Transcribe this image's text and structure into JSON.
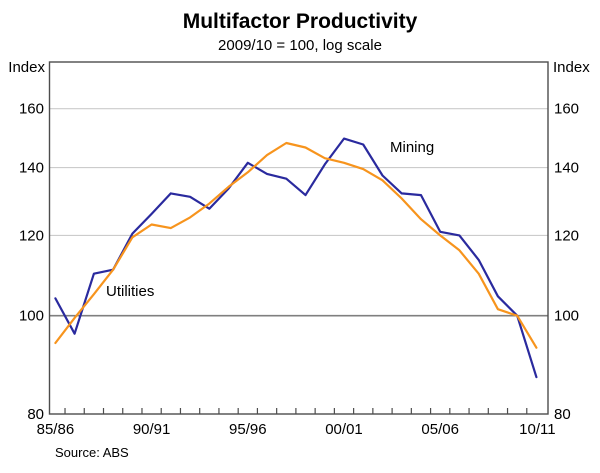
{
  "header": {
    "title": "Multifactor Productivity",
    "subtitle": "2009/10 = 100, log scale"
  },
  "source_note": "Source: ABS",
  "axis_unit_left": "Index",
  "axis_unit_right": "Index",
  "colors": {
    "mining": "#2a2a9e",
    "utilities": "#f7941d",
    "gridline": "#cccccc",
    "baseline_100": "#7f7f7f",
    "frame": "#4d4d4d"
  },
  "chart_data": {
    "type": "line",
    "title": "Multifactor Productivity",
    "subtitle": "2009/10 = 100, log scale",
    "xlabel": "",
    "ylabel": "Index",
    "y_scale": "log",
    "ylim": [
      80,
      178
    ],
    "y_ticks": [
      80,
      100,
      120,
      140,
      160
    ],
    "reference_line": 100,
    "grid": "horizontal",
    "legend_position": "inline-labels",
    "categories": [
      "85/86",
      "86/87",
      "87/88",
      "88/89",
      "89/90",
      "90/91",
      "91/92",
      "92/93",
      "93/94",
      "94/95",
      "95/96",
      "96/97",
      "97/98",
      "98/99",
      "99/00",
      "00/01",
      "01/02",
      "02/03",
      "03/04",
      "04/05",
      "05/06",
      "06/07",
      "07/08",
      "08/09",
      "09/10",
      "10/11"
    ],
    "x_labeled_indices": [
      0,
      5,
      10,
      15,
      20,
      25
    ],
    "series": [
      {
        "name": "Mining",
        "color": "#2a2a9e",
        "values": [
          104,
          96,
          110,
          111,
          120.5,
          126,
          132,
          131,
          127.5,
          133.5,
          141.5,
          138,
          136.5,
          131.5,
          141,
          149.5,
          147.5,
          137.5,
          132,
          131.5,
          121,
          120,
          113.5,
          104.5,
          100,
          87
        ]
      },
      {
        "name": "Utilities",
        "color": "#f7941d",
        "values": [
          94,
          99.5,
          105,
          111,
          119.5,
          123,
          122,
          125,
          129,
          134,
          138.5,
          144,
          148,
          146.5,
          143,
          141.5,
          139.5,
          136,
          130.5,
          124.5,
          120,
          116,
          110,
          101.5,
          100,
          93
        ]
      }
    ]
  }
}
